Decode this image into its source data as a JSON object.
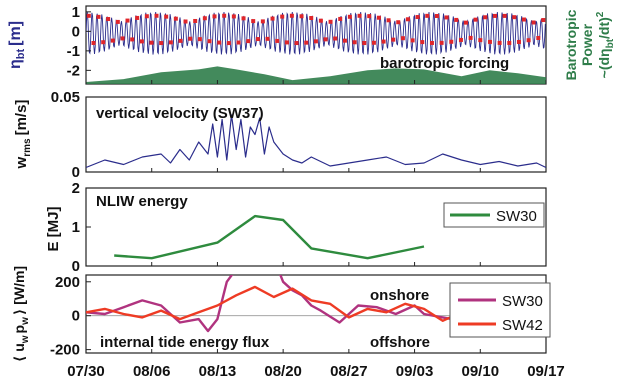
{
  "x_axis": {
    "tick_labels": [
      "07/30",
      "08/06",
      "08/13",
      "08/20",
      "08/27",
      "09/03",
      "09/10",
      "09/17"
    ],
    "range_days": [
      0,
      49
    ]
  },
  "chart_data": [
    {
      "type": "line",
      "panel": "barotropic",
      "ylabel": "η",
      "ylabel_sub": "bt",
      "ylabel_unit": "[m]",
      "right_label": [
        "Barotropic",
        "Power",
        "~(dη",
        "bt",
        "/dt)",
        "2"
      ],
      "annotation": "barotropic forcing",
      "ylim": [
        -2.7,
        1.3
      ],
      "yticks": [
        1,
        0,
        -1,
        -2
      ],
      "yticklabels": [
        "1",
        "0",
        "-1",
        "-2"
      ],
      "series": [
        {
          "kind": "tidal-oscillation",
          "color": "#2b2d8c",
          "amplitude_m": 1.1,
          "semidiurnal_period_days": 0.52
        },
        {
          "kind": "high-low-markers",
          "color": "#e0252a",
          "values_m": [
            0.8,
            -0.6
          ]
        },
        {
          "kind": "power-area",
          "color": "#2f7d4a",
          "x_days": [
            0,
            4,
            8,
            12,
            14,
            16,
            19,
            22,
            26,
            30,
            33,
            36,
            40,
            43,
            46,
            49
          ],
          "y_m": [
            -2.6,
            -2.45,
            -2.1,
            -1.95,
            -1.8,
            -1.95,
            -2.2,
            -2.5,
            -2.3,
            -2.0,
            -1.9,
            -1.95,
            -2.3,
            -2.0,
            -2.15,
            -2.35
          ]
        }
      ]
    },
    {
      "type": "line",
      "panel": "vertical-velocity",
      "ylabel": "w",
      "ylabel_sub": "rms",
      "ylabel_unit": "[m/s]",
      "annotation": "vertical velocity (SW37)",
      "ylim": [
        0,
        0.05
      ],
      "yticks": [
        0,
        0.05
      ],
      "yticklabels": [
        "0",
        "0.05"
      ],
      "series": [
        {
          "color": "#2b2d8c",
          "x_days": [
            0,
            2,
            4,
            6,
            8,
            9,
            10,
            11,
            12,
            13,
            13.5,
            14,
            14.5,
            15,
            15.5,
            16,
            16.5,
            17,
            17.5,
            18,
            18.5,
            19,
            19.5,
            20,
            21,
            22,
            23,
            24,
            26,
            28,
            30,
            32,
            34,
            36,
            38,
            40,
            42,
            44,
            46,
            48,
            49
          ],
          "y": [
            0.003,
            0.008,
            0.005,
            0.01,
            0.012,
            0.006,
            0.015,
            0.008,
            0.02,
            0.012,
            0.032,
            0.01,
            0.035,
            0.008,
            0.038,
            0.015,
            0.035,
            0.01,
            0.03,
            0.025,
            0.036,
            0.012,
            0.03,
            0.02,
            0.012,
            0.008,
            0.006,
            0.01,
            0.004,
            0.006,
            0.008,
            0.01,
            0.005,
            0.006,
            0.012,
            0.008,
            0.005,
            0.007,
            0.004,
            0.006,
            0.003
          ]
        }
      ]
    },
    {
      "type": "line",
      "panel": "nliw-energy",
      "ylabel": "E [MJ]",
      "annotation": "NLIW energy",
      "ylim": [
        0,
        2
      ],
      "yticks": [
        0,
        1,
        2
      ],
      "yticklabels": [
        "0",
        "1",
        "2"
      ],
      "legend": [
        "SW30"
      ],
      "series": [
        {
          "name": "SW30",
          "color": "#2e8b3e",
          "x_days": [
            3,
            7,
            14,
            18,
            21,
            24,
            30,
            36
          ],
          "y": [
            0.27,
            0.2,
            0.6,
            1.28,
            1.18,
            0.45,
            0.2,
            0.5
          ]
        }
      ]
    },
    {
      "type": "line",
      "panel": "energy-flux",
      "ylabel": "⟨ u",
      "ylabel_sub": "w",
      "ylabel_mid": "p",
      "ylabel_sub2": "w",
      "ylabel_unit": "⟩ [W/m]",
      "annotations": [
        "onshore",
        "offshore",
        "internal tide energy flux"
      ],
      "ylim": [
        -220,
        240
      ],
      "yticks": [
        200,
        0,
        -200
      ],
      "yticklabels": [
        "200",
        "0",
        "-200"
      ],
      "legend": [
        "SW30",
        "SW42"
      ],
      "series": [
        {
          "name": "SW30",
          "color": "#b0337f",
          "x_days": [
            0,
            2,
            4,
            6,
            8,
            10,
            12,
            13,
            14,
            15,
            17,
            19,
            21,
            22,
            23,
            24,
            25,
            27,
            29,
            31,
            33,
            35,
            36,
            38,
            40
          ],
          "y": [
            20,
            10,
            50,
            90,
            60,
            -40,
            -20,
            -90,
            -20,
            200,
            350,
            480,
            200,
            150,
            120,
            60,
            30,
            -40,
            60,
            50,
            10,
            60,
            10,
            -10,
            -30
          ]
        },
        {
          "name": "SW42",
          "color": "#ee3b24",
          "x_days": [
            0,
            2,
            4,
            6,
            8,
            10,
            12,
            14,
            16,
            18,
            20,
            22,
            24,
            26,
            28,
            30,
            32,
            34,
            36,
            38,
            40
          ],
          "y": [
            20,
            40,
            10,
            -10,
            30,
            -20,
            20,
            60,
            120,
            170,
            110,
            160,
            90,
            70,
            -10,
            40,
            20,
            70,
            40,
            -30,
            20
          ]
        }
      ]
    }
  ]
}
